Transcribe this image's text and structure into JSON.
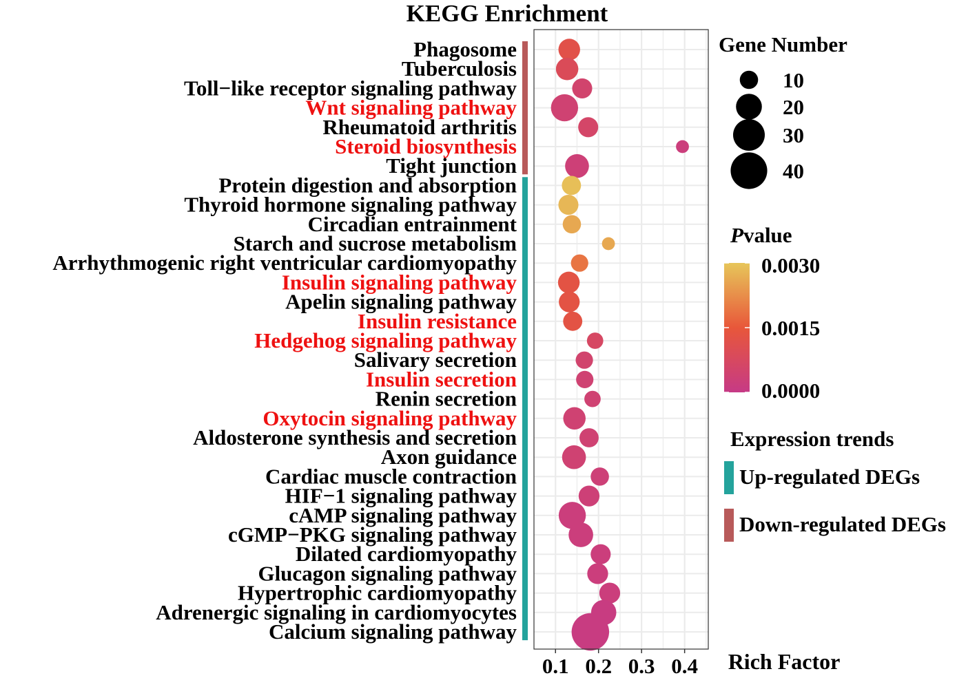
{
  "chart_data": {
    "type": "scatter",
    "title": "KEGG Enrichment",
    "xlabel": "Rich Factor",
    "xlim": [
      0.05,
      0.455
    ],
    "xticks": [
      0.1,
      0.2,
      0.3,
      0.4
    ],
    "xtick_labels": [
      "0.1",
      "0.2",
      "0.3",
      "0.4"
    ],
    "grid": true,
    "highlight_color": "#ee1111",
    "pathways": [
      {
        "name": "Phagosome",
        "rich_factor": 0.132,
        "gene_number": 14,
        "pvalue": 0.0012,
        "group": "down",
        "highlight": false
      },
      {
        "name": "Tuberculosis",
        "rich_factor": 0.127,
        "gene_number": 15,
        "pvalue": 0.0009,
        "group": "down",
        "highlight": false
      },
      {
        "name": "Toll−like receptor signaling pathway",
        "rich_factor": 0.162,
        "gene_number": 12,
        "pvalue": 0.0005,
        "group": "down",
        "highlight": false
      },
      {
        "name": "Wnt signaling pathway",
        "rich_factor": 0.121,
        "gene_number": 22,
        "pvalue": 0.0004,
        "group": "down",
        "highlight": true
      },
      {
        "name": "Rheumatoid arthritis",
        "rich_factor": 0.176,
        "gene_number": 12,
        "pvalue": 0.0006,
        "group": "down",
        "highlight": false
      },
      {
        "name": "Steroid biosynthesis",
        "rich_factor": 0.395,
        "gene_number": 5,
        "pvalue": 0.0002,
        "group": "down",
        "highlight": true
      },
      {
        "name": "Tight junction",
        "rich_factor": 0.15,
        "gene_number": 17,
        "pvalue": 0.0003,
        "group": "down",
        "highlight": false
      },
      {
        "name": "Protein digestion and absorption",
        "rich_factor": 0.137,
        "gene_number": 11,
        "pvalue": 0.0029,
        "group": "up",
        "highlight": false
      },
      {
        "name": "Thyroid hormone signaling pathway",
        "rich_factor": 0.13,
        "gene_number": 12,
        "pvalue": 0.0028,
        "group": "up",
        "highlight": false
      },
      {
        "name": "Circadian entrainment",
        "rich_factor": 0.138,
        "gene_number": 10,
        "pvalue": 0.0026,
        "group": "up",
        "highlight": false
      },
      {
        "name": "Starch and sucrose metabolism",
        "rich_factor": 0.223,
        "gene_number": 5,
        "pvalue": 0.0026,
        "group": "up",
        "highlight": false
      },
      {
        "name": "Arrhythmogenic right ventricular cardiomyopathy",
        "rich_factor": 0.156,
        "gene_number": 9,
        "pvalue": 0.0019,
        "group": "up",
        "highlight": false
      },
      {
        "name": "Insulin signaling pathway",
        "rich_factor": 0.131,
        "gene_number": 14,
        "pvalue": 0.0013,
        "group": "up",
        "highlight": true
      },
      {
        "name": "Apelin signaling pathway",
        "rich_factor": 0.132,
        "gene_number": 13,
        "pvalue": 0.0013,
        "group": "up",
        "highlight": false
      },
      {
        "name": "Insulin resistance",
        "rich_factor": 0.14,
        "gene_number": 11,
        "pvalue": 0.0013,
        "group": "up",
        "highlight": true
      },
      {
        "name": "Hedgehog signaling pathway",
        "rich_factor": 0.192,
        "gene_number": 8,
        "pvalue": 0.0007,
        "group": "up",
        "highlight": true
      },
      {
        "name": "Salivary secretion",
        "rich_factor": 0.167,
        "gene_number": 9,
        "pvalue": 0.0005,
        "group": "up",
        "highlight": false
      },
      {
        "name": "Insulin secretion",
        "rich_factor": 0.168,
        "gene_number": 9,
        "pvalue": 0.0004,
        "group": "up",
        "highlight": true
      },
      {
        "name": "Renin secretion",
        "rich_factor": 0.186,
        "gene_number": 8,
        "pvalue": 0.0004,
        "group": "up",
        "highlight": false
      },
      {
        "name": "Oxytocin signaling pathway",
        "rich_factor": 0.144,
        "gene_number": 15,
        "pvalue": 0.0004,
        "group": "up",
        "highlight": true
      },
      {
        "name": "Aldosterone synthesis and secretion",
        "rich_factor": 0.178,
        "gene_number": 11,
        "pvalue": 0.0004,
        "group": "up",
        "highlight": false
      },
      {
        "name": "Axon guidance",
        "rich_factor": 0.143,
        "gene_number": 17,
        "pvalue": 0.0004,
        "group": "up",
        "highlight": false
      },
      {
        "name": "Cardiac muscle contraction",
        "rich_factor": 0.203,
        "gene_number": 10,
        "pvalue": 0.0003,
        "group": "up",
        "highlight": false
      },
      {
        "name": "HIF−1 signaling pathway",
        "rich_factor": 0.178,
        "gene_number": 13,
        "pvalue": 0.0003,
        "group": "up",
        "highlight": false
      },
      {
        "name": "cAMP signaling pathway",
        "rich_factor": 0.139,
        "gene_number": 22,
        "pvalue": 0.0002,
        "group": "up",
        "highlight": false
      },
      {
        "name": "cGMP−PKG signaling pathway",
        "rich_factor": 0.159,
        "gene_number": 18,
        "pvalue": 0.0002,
        "group": "up",
        "highlight": false
      },
      {
        "name": "Dilated cardiomyopathy",
        "rich_factor": 0.205,
        "gene_number": 12,
        "pvalue": 0.0002,
        "group": "up",
        "highlight": false
      },
      {
        "name": "Glucagon signaling pathway",
        "rich_factor": 0.198,
        "gene_number": 13,
        "pvalue": 0.0002,
        "group": "up",
        "highlight": false
      },
      {
        "name": "Hypertrophic cardiomyopathy",
        "rich_factor": 0.226,
        "gene_number": 13,
        "pvalue": 0.0002,
        "group": "up",
        "highlight": false
      },
      {
        "name": "Adrenergic signaling in cardiomyocytes",
        "rich_factor": 0.212,
        "gene_number": 19,
        "pvalue": 0.0001,
        "group": "up",
        "highlight": false
      },
      {
        "name": "Calcium signaling pathway",
        "rich_factor": 0.181,
        "gene_number": 42,
        "pvalue": 0.0001,
        "group": "up",
        "highlight": false
      }
    ],
    "size_legend": {
      "title": "Gene Number",
      "values": [
        10,
        20,
        30,
        40
      ],
      "labels": [
        "10",
        "20",
        "30",
        "40"
      ]
    },
    "color_legend": {
      "title_italic": "P",
      "title_rest": "value",
      "range": [
        0,
        0.003
      ],
      "breaks": [
        0.003,
        0.0015,
        0.0
      ],
      "labels": [
        "0.0030",
        "0.0015",
        "0.0000"
      ],
      "colors": {
        "low": "#c63a86",
        "mid": "#e8573a",
        "high": "#e7c65a"
      }
    },
    "group_legend": {
      "title": "Expression trends",
      "items": [
        {
          "key": "up",
          "label": "Up-regulated DEGs",
          "color": "#24a39c"
        },
        {
          "key": "down",
          "label": "Down-regulated DEGs",
          "color": "#b85a5a"
        }
      ]
    }
  }
}
